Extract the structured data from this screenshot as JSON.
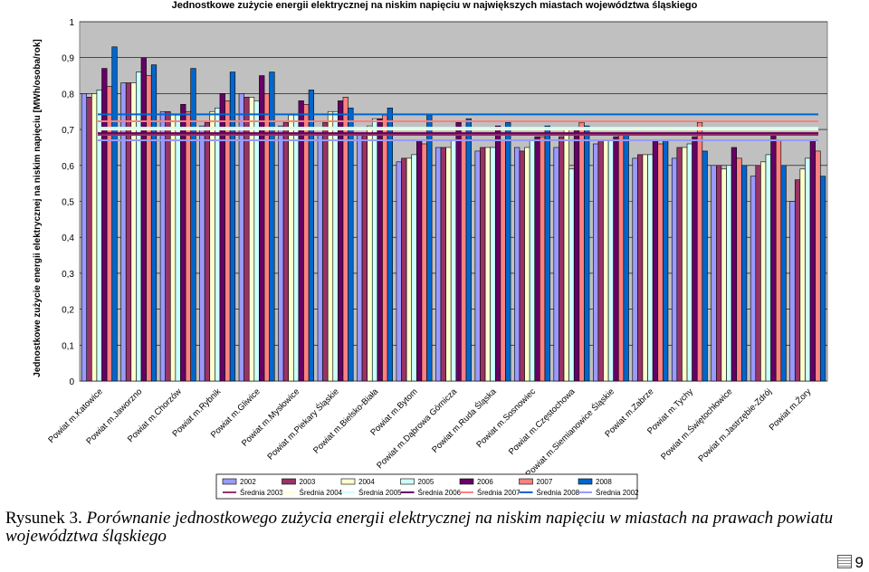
{
  "chart_data": {
    "type": "bar",
    "title": "Jednostkowe zużycie energii elektrycznej na niskim napięciu w największych miastach województwa śląskiego",
    "ylabel": "Jednostkowe zużycie energii elektrycznej na niskim napięciu [MWh/osoba/rok]",
    "xlabel": "",
    "ylim": [
      0,
      1
    ],
    "yticks": [
      "0",
      "0,1",
      "0,2",
      "0,3",
      "0,4",
      "0,5",
      "0,6",
      "0,7",
      "0,8",
      "0,9",
      "1"
    ],
    "grid": "horizontal",
    "plot_background": "#c0c0c0",
    "legend_position": "bottom",
    "categories": [
      "Powiat m.Katowice",
      "Powiat m.Jaworzno",
      "Powiat m.Chorzów",
      "Powiat m.Rybnik",
      "Powiat m.Gliwice",
      "Powiat m.Mysłowice",
      "Powiat m.Piekary Śląskie",
      "Powiat m.Bielsko-Biała",
      "Powiat m.Bytom",
      "Powiat m.Dąbrowa Górnicza",
      "Powiat m.Ruda Śląska",
      "Powiat m.Sosnowiec",
      "Powiat m.Częstochowa",
      "Powiat m.Siemianowice Śląskie",
      "Powiat m.Zabrze",
      "Powiat m.Tychy",
      "Powiat m.Świętochłowice",
      "Powiat m.Jastrzębie-Zdrój",
      "Powiat m.Żory"
    ],
    "series": [
      {
        "name": "2002",
        "color": "#9999ff",
        "values": [
          0.8,
          0.83,
          0.75,
          0.71,
          0.8,
          0.71,
          0.69,
          0.69,
          0.61,
          0.65,
          0.64,
          0.65,
          0.65,
          0.66,
          0.62,
          0.62,
          0.6,
          0.57,
          0.5
        ]
      },
      {
        "name": "2003",
        "color": "#993366",
        "values": [
          0.79,
          0.83,
          0.75,
          0.72,
          0.79,
          0.72,
          0.72,
          0.69,
          0.62,
          0.65,
          0.65,
          0.64,
          0.68,
          0.67,
          0.63,
          0.65,
          0.6,
          0.6,
          0.56
        ]
      },
      {
        "name": "2004",
        "color": "#ffffcc",
        "values": [
          0.8,
          0.83,
          0.74,
          0.75,
          0.79,
          0.74,
          0.75,
          0.71,
          0.62,
          0.65,
          0.65,
          0.65,
          0.7,
          0.67,
          0.63,
          0.65,
          0.59,
          0.61,
          0.59
        ]
      },
      {
        "name": "2005",
        "color": "#ccffff",
        "values": [
          0.81,
          0.86,
          0.74,
          0.76,
          0.78,
          0.74,
          0.75,
          0.73,
          0.63,
          0.67,
          0.65,
          0.67,
          0.59,
          0.67,
          0.63,
          0.66,
          0.6,
          0.63,
          0.62
        ]
      },
      {
        "name": "2006",
        "color": "#660066",
        "values": [
          0.87,
          0.9,
          0.77,
          0.8,
          0.85,
          0.78,
          0.78,
          0.73,
          0.67,
          0.72,
          0.71,
          0.68,
          0.7,
          0.68,
          0.67,
          0.68,
          0.65,
          0.69,
          0.67
        ]
      },
      {
        "name": "2007",
        "color": "#ff8080",
        "values": [
          0.82,
          0.85,
          0.75,
          0.78,
          0.8,
          0.77,
          0.79,
          0.74,
          0.66,
          0.69,
          0.67,
          0.68,
          0.72,
          0.69,
          0.66,
          0.72,
          0.62,
          0.67,
          0.64
        ]
      },
      {
        "name": "2008",
        "color": "#0066cc",
        "values": [
          0.93,
          0.88,
          0.87,
          0.86,
          0.86,
          0.81,
          0.76,
          0.76,
          0.74,
          0.73,
          0.72,
          0.71,
          0.71,
          0.69,
          0.67,
          0.64,
          0.6,
          0.6,
          0.57
        ]
      }
    ],
    "averages": [
      {
        "name": "Średnia 2003",
        "color": "#993366",
        "value": 0.685
      },
      {
        "name": "Średnia 2004",
        "color": "#ffffcc",
        "value": 0.7
      },
      {
        "name": "Średnia 2005",
        "color": "#ccffff",
        "value": 0.705
      },
      {
        "name": "Średnia 2006",
        "color": "#660066",
        "value": 0.69
      },
      {
        "name": "Średnia 2007",
        "color": "#ff8080",
        "value": 0.723
      },
      {
        "name": "Średnia 2008",
        "color": "#0066cc",
        "value": 0.742
      },
      {
        "name": "Średnia 2002",
        "color": "#9999ff",
        "value": 0.67
      }
    ]
  },
  "caption": {
    "label": "Rysunek 3. ",
    "text": "Porównanie jednostkowego zużycia energii elektrycznej na niskim napięciu w miastach na prawach powiatu województwa śląskiego"
  },
  "page": {
    "icon": "page-icon",
    "number": "9"
  }
}
